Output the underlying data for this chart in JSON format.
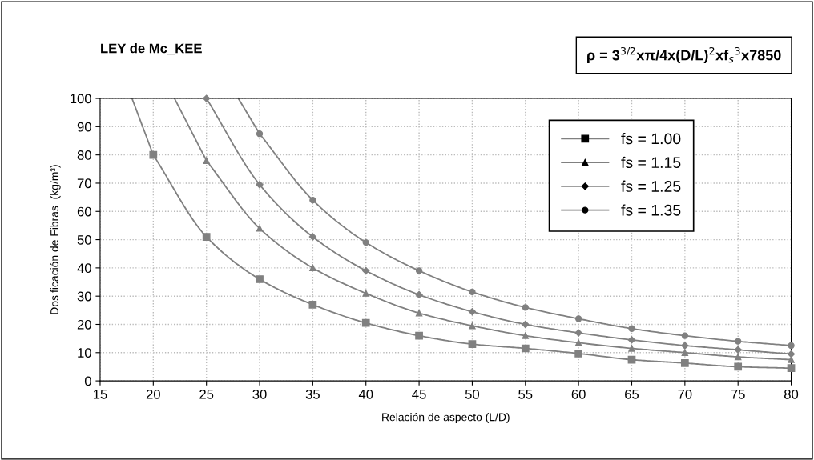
{
  "chart_data": {
    "type": "line",
    "title": "LEY de Mc_KEE",
    "xlabel": "Relación de aspecto (L/D)",
    "ylabel": "Dosificación de Fibras  (kg/m³)",
    "annotations": [
      "ρ = 3$^{3/2}$xπ/4x(D/L)$^{2}$xf$_{s}$$^{3}$x7850"
    ],
    "xlim": [
      15,
      80
    ],
    "xticks": [
      15,
      20,
      25,
      30,
      35,
      40,
      45,
      50,
      55,
      60,
      65,
      70,
      75,
      80
    ],
    "ylim": [
      0,
      100
    ],
    "yticks": [
      0,
      10,
      20,
      30,
      40,
      50,
      60,
      70,
      80,
      90,
      100
    ],
    "grid": true,
    "legend": "top right",
    "line_style": "solid",
    "series": [
      {
        "name": "fs = 1.00",
        "color": "#808080",
        "marker": "square",
        "x": [
          20,
          25,
          30,
          35,
          40,
          45,
          50,
          55,
          60,
          65,
          70,
          75,
          80
        ],
        "values": [
          80,
          51,
          36,
          27,
          20.5,
          16,
          13,
          11.5,
          9.7,
          7.5,
          6.3,
          5,
          4.5
        ]
      },
      {
        "name": "fs = 1.15",
        "color": "#808080",
        "marker": "triangle",
        "x": [
          25,
          30,
          35,
          40,
          45,
          50,
          55,
          60,
          65,
          70,
          75,
          80
        ],
        "values": [
          78,
          54,
          40,
          31,
          24,
          19.5,
          16,
          13.5,
          11.5,
          10,
          8.5,
          7.5
        ]
      },
      {
        "name": "fs = 1.25",
        "color": "#808080",
        "marker": "diamond",
        "x": [
          25,
          30,
          35,
          40,
          45,
          50,
          55,
          60,
          65,
          70,
          75,
          80
        ],
        "values": [
          100,
          69.5,
          51,
          39,
          30.5,
          24.5,
          20,
          17,
          14.5,
          12.5,
          11,
          9.5
        ]
      },
      {
        "name": "fs = 1.35",
        "color": "#808080",
        "marker": "circle",
        "x": [
          30,
          35,
          40,
          45,
          50,
          55,
          60,
          65,
          70,
          75,
          80
        ],
        "values": [
          87.5,
          64,
          49,
          39,
          31.5,
          26,
          22,
          18.5,
          16,
          14,
          12.5
        ]
      },
      {
        "type": "line",
        "color": "#808080",
        "marker": "none",
        "x": [
          18,
          20
        ],
        "values": [
          100,
          80
        ]
      },
      {
        "type": "line",
        "color": "#808080",
        "marker": "none",
        "x": [
          22,
          25
        ],
        "values": [
          100,
          78
        ]
      },
      {
        "type": "line",
        "color": "#808080",
        "marker": "none",
        "x": [
          28,
          30
        ],
        "values": [
          100,
          87.5
        ]
      }
    ]
  }
}
